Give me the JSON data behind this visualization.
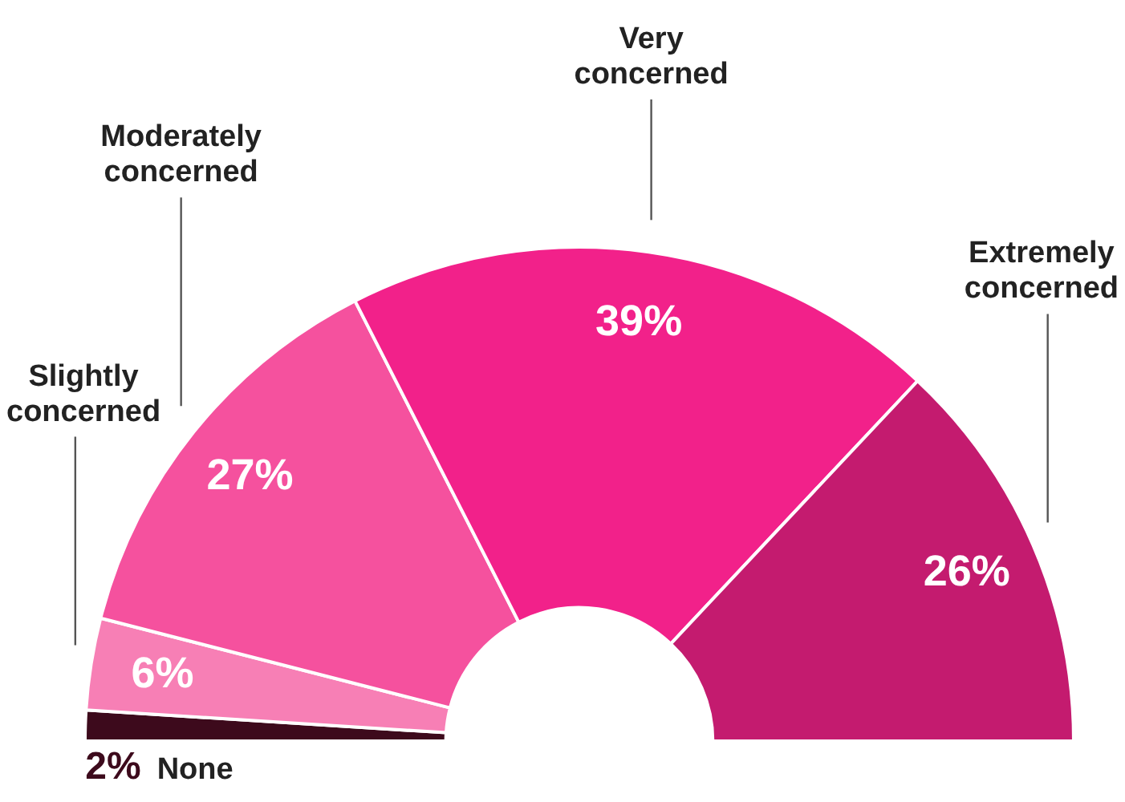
{
  "chart_data": {
    "type": "donut",
    "categories": [
      "None",
      "Slightly concerned",
      "Moderately concerned",
      "Very concerned",
      "Extremely concerned"
    ],
    "values": [
      2,
      6,
      27,
      39,
      26
    ],
    "colors": [
      "#3d0a1c",
      "#f77fb5",
      "#f5519e",
      "#f2218a",
      "#c41b6f"
    ],
    "value_labels": [
      "2%",
      "6%",
      "27%",
      "39%",
      "26%"
    ],
    "legend": false
  }
}
